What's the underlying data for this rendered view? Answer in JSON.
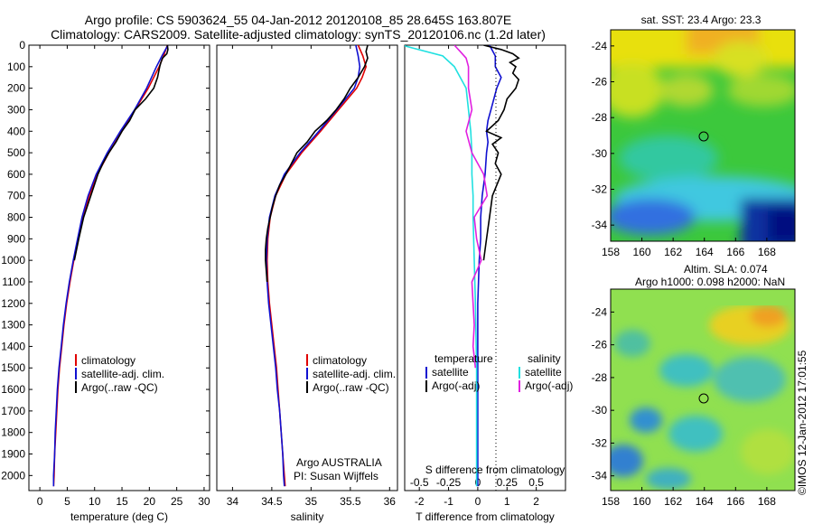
{
  "header": {
    "title_line1": "Argo profile: CS 5903624_55 04-Jan-2012 20120108_85 28.645S 163.807E",
    "title_line2": "Climatology: CARS2009. Satellite-adjusted climatology: synTS_20120106.nc (1.2d later)"
  },
  "colors": {
    "climatology": "#e00000",
    "satellite": "#1010d0",
    "argo": "#000000",
    "cyan": "#20e0e0",
    "magenta": "#e020e0"
  },
  "chart_data": [
    {
      "type": "line",
      "name": "temperature",
      "xlabel": "temperature (deg C)",
      "ylabel": "",
      "xlim": [
        -2,
        31
      ],
      "ylim": [
        2070,
        0
      ],
      "xticks": [
        "0",
        "5",
        "10",
        "15",
        "20",
        "25",
        "30"
      ],
      "yticks": [
        "0",
        "100",
        "200",
        "300",
        "400",
        "500",
        "600",
        "700",
        "800",
        "900",
        "1000",
        "1100",
        "1200",
        "1300",
        "1400",
        "1500",
        "1600",
        "1700",
        "1800",
        "1900",
        "2000"
      ],
      "legend": [
        "climatology",
        "satellite-adj. clim.",
        "Argo(..raw -QC)"
      ],
      "series": [
        {
          "name": "climatology",
          "depth": [
            0,
            50,
            100,
            200,
            300,
            400,
            500,
            600,
            700,
            800,
            900,
            1000,
            1100,
            1200,
            1300,
            1400,
            1500,
            1600,
            1700,
            1800,
            1900,
            2000,
            2050
          ],
          "values": [
            23.3,
            22.6,
            21.8,
            19.8,
            17.4,
            15.0,
            12.6,
            10.5,
            9.0,
            7.9,
            7.0,
            6.2,
            5.5,
            4.9,
            4.4,
            4.0,
            3.6,
            3.3,
            3.1,
            2.9,
            2.7,
            2.6,
            2.5
          ]
        },
        {
          "name": "satellite-adj. clim.",
          "depth": [
            0,
            50,
            100,
            200,
            300,
            400,
            500,
            600,
            700,
            800,
            900,
            1000,
            1100,
            1200,
            1300,
            1400,
            1500,
            1600,
            1700,
            1800,
            1900,
            2000,
            2050
          ],
          "values": [
            23.4,
            22.3,
            21.3,
            19.5,
            17.3,
            14.7,
            12.3,
            10.3,
            8.8,
            7.7,
            6.9,
            6.1,
            5.4,
            4.8,
            4.3,
            3.9,
            3.5,
            3.2,
            3.0,
            2.8,
            2.7,
            2.5,
            2.5
          ]
        },
        {
          "name": "Argo(..raw -QC)",
          "depth": [
            0,
            20,
            40,
            60,
            80,
            100,
            150,
            200,
            250,
            300,
            350,
            400,
            450,
            500,
            550,
            600,
            700,
            800,
            900,
            1000
          ],
          "values": [
            23.3,
            23.4,
            23.2,
            22.4,
            22.1,
            21.9,
            21.5,
            20.8,
            19.3,
            17.4,
            16.4,
            15.0,
            13.9,
            12.6,
            11.5,
            10.6,
            9.3,
            8.0,
            7.1,
            6.3
          ]
        }
      ]
    },
    {
      "type": "line",
      "name": "salinity",
      "xlabel": "salinity",
      "ylabel": "",
      "xlim": [
        33.8,
        36.1
      ],
      "ylim": [
        2070,
        0
      ],
      "xticks": [
        "34",
        "34.5",
        "35",
        "35.5",
        "36"
      ],
      "legend": [
        "climatology",
        "satellite-adj. clim.",
        "Argo(..raw -QC)"
      ],
      "annotation": [
        "Argo AUSTRALIA",
        "PI: Susan Wijffels"
      ],
      "series": [
        {
          "name": "climatology",
          "depth": [
            0,
            50,
            100,
            150,
            200,
            300,
            400,
            500,
            600,
            700,
            800,
            900,
            1000,
            1100,
            1200,
            1300,
            1400,
            1500,
            1600,
            1700,
            1800,
            1900,
            2000,
            2050
          ],
          "values": [
            35.6,
            35.66,
            35.7,
            35.65,
            35.58,
            35.35,
            35.12,
            34.88,
            34.68,
            34.55,
            34.48,
            34.45,
            34.44,
            34.45,
            34.47,
            34.5,
            34.53,
            34.56,
            34.58,
            34.6,
            34.62,
            34.64,
            34.66,
            34.67
          ]
        },
        {
          "name": "satellite-adj. clim.",
          "depth": [
            0,
            50,
            100,
            150,
            200,
            300,
            400,
            500,
            600,
            700,
            800,
            900,
            1000,
            1100,
            1200,
            1300,
            1400,
            1500,
            1600,
            1700,
            1800,
            1900,
            2000,
            2050
          ],
          "values": [
            35.57,
            35.6,
            35.62,
            35.6,
            35.55,
            35.33,
            35.1,
            34.86,
            34.66,
            34.54,
            34.47,
            34.44,
            34.43,
            34.44,
            34.46,
            34.49,
            34.52,
            34.55,
            34.57,
            34.6,
            34.62,
            34.64,
            34.65,
            34.66
          ]
        },
        {
          "name": "Argo(..raw -QC)",
          "depth": [
            0,
            30,
            60,
            100,
            150,
            200,
            250,
            300,
            350,
            400,
            450,
            500,
            550,
            600,
            650,
            700,
            750,
            800,
            850,
            900,
            950,
            1000,
            1050,
            1100
          ],
          "values": [
            35.72,
            35.7,
            35.72,
            35.68,
            35.6,
            35.5,
            35.42,
            35.32,
            35.2,
            35.05,
            34.95,
            34.82,
            34.75,
            34.68,
            34.6,
            34.55,
            34.51,
            34.48,
            34.45,
            34.43,
            34.42,
            34.42,
            34.43,
            34.44
          ]
        }
      ]
    },
    {
      "type": "line",
      "name": "differences",
      "xlabel": "T difference from climatology",
      "xlabel_top": "S difference from climatology",
      "xlim": [
        -2.5,
        3.0
      ],
      "ylim": [
        2070,
        0
      ],
      "xticks": [
        "-2",
        "-1",
        "0",
        "1",
        "2"
      ],
      "xticks_top": [
        "-0.5",
        "-0.25",
        "0",
        "0.25",
        "0.5"
      ],
      "legend_left": {
        "title": "temperature",
        "items": [
          "satellite",
          "Argo(-adj)"
        ]
      },
      "legend_right": {
        "title": "salinity",
        "items": [
          "satellite",
          "Argo(-adj)"
        ]
      },
      "series": [
        {
          "name": "temperature satellite",
          "depth": [
            0,
            50,
            100,
            150,
            200,
            250,
            300,
            350,
            400,
            450,
            500,
            600,
            700,
            800,
            900,
            1000,
            1200,
            1500,
            1800,
            2050
          ],
          "values": [
            0.4,
            0.6,
            0.6,
            0.8,
            0.65,
            0.55,
            0.45,
            0.35,
            0.3,
            0.35,
            0.3,
            0.25,
            0.15,
            0.1,
            0.1,
            0.05,
            0.0,
            0.0,
            0.0,
            0.0
          ]
        },
        {
          "name": "temperature Argo(-adj)",
          "depth": [
            0,
            20,
            40,
            60,
            80,
            100,
            130,
            160,
            200,
            250,
            300,
            350,
            400,
            430,
            460,
            500,
            550,
            600,
            700,
            800,
            900,
            1000
          ],
          "values": [
            0.2,
            0.8,
            1.2,
            1.4,
            1.1,
            1.3,
            1.2,
            1.4,
            1.3,
            1.0,
            0.9,
            0.7,
            0.3,
            0.8,
            0.5,
            0.7,
            0.6,
            0.8,
            0.5,
            0.4,
            0.3,
            0.2
          ]
        },
        {
          "name": "salinity satellite",
          "depth": [
            0,
            50,
            100,
            200,
            300,
            400,
            500,
            600,
            700,
            800,
            1000,
            1200,
            1500,
            1800,
            2050
          ],
          "values": [
            -0.65,
            -0.3,
            -0.2,
            -0.1,
            -0.08,
            -0.06,
            -0.05,
            -0.05,
            -0.04,
            -0.04,
            -0.03,
            -0.02,
            -0.01,
            -0.01,
            -0.01
          ]
        },
        {
          "name": "salinity Argo(-adj)",
          "depth": [
            0,
            30,
            60,
            100,
            200,
            300,
            400,
            500,
            600,
            700,
            800,
            900,
            1000,
            1100,
            1200,
            1300,
            1400,
            1500
          ],
          "values": [
            -0.2,
            -0.15,
            -0.1,
            -0.08,
            -0.08,
            -0.05,
            -0.1,
            -0.05,
            0.05,
            0.08,
            -0.03,
            -0.01,
            0.03,
            -0.05,
            -0.04,
            -0.03,
            -0.04,
            -0.02
          ]
        }
      ]
    },
    {
      "type": "heatmap",
      "name": "sst-map",
      "title": "sat. SST: 23.4 Argo: 23.3",
      "xticks": [
        "158",
        "160",
        "162",
        "164",
        "166",
        "168"
      ],
      "yticks": [
        "-24",
        "-26",
        "-28",
        "-30",
        "-32",
        "-34"
      ],
      "marker": {
        "lon": 163.807,
        "lat": -28.645
      }
    },
    {
      "type": "heatmap",
      "name": "sla-map",
      "title_line1": "Altim. SLA: 0.074",
      "title_line2": "Argo h1000: 0.098 h2000: NaN",
      "xticks": [
        "158",
        "160",
        "162",
        "164",
        "166",
        "168"
      ],
      "yticks": [
        "-24",
        "-26",
        "-28",
        "-30",
        "-32",
        "-34"
      ],
      "marker": {
        "lon": 163.807,
        "lat": -28.645
      }
    }
  ],
  "footer_vertical": "©IMOS 12-Jan-2012 17:01:55"
}
